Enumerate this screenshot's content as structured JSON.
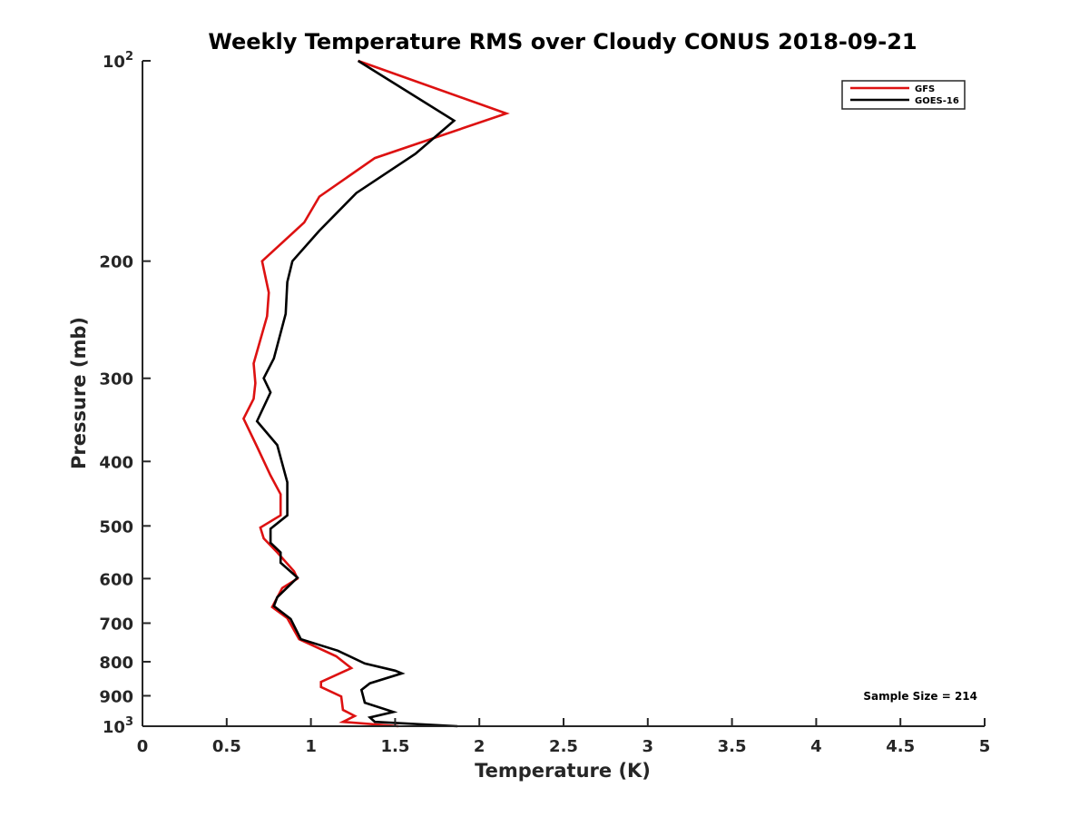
{
  "chart_data": {
    "type": "line",
    "title": "Weekly Temperature RMS over Cloudy CONUS 2018-09-21",
    "xlabel": "Temperature (K)",
    "ylabel": "Pressure (mb)",
    "xlim": [
      0,
      5
    ],
    "ylim": [
      100,
      1000
    ],
    "y_scale": "log",
    "y_reversed": true,
    "x_ticks": [
      0,
      0.5,
      1,
      1.5,
      2,
      2.5,
      3,
      3.5,
      4,
      4.5,
      5
    ],
    "x_tick_labels": [
      "0",
      "0.5",
      "1",
      "1.5",
      "2",
      "2.5",
      "3",
      "3.5",
      "4",
      "4.5",
      "5"
    ],
    "y_ticks": [
      {
        "value": 100,
        "base": "10",
        "exp": "2"
      },
      {
        "value": 200,
        "label": "200"
      },
      {
        "value": 300,
        "label": "300"
      },
      {
        "value": 400,
        "label": "400"
      },
      {
        "value": 500,
        "label": "500"
      },
      {
        "value": 600,
        "label": "600"
      },
      {
        "value": 700,
        "label": "700"
      },
      {
        "value": 800,
        "label": "800"
      },
      {
        "value": 900,
        "label": "900"
      },
      {
        "value": 1000,
        "base": "10",
        "exp": "3"
      }
    ],
    "legend_position": "top-right",
    "grid": false,
    "annotation": "Sample Size = 214",
    "series": [
      {
        "name": "GFS",
        "color": "#dd1111",
        "points": [
          [
            1.28,
            100
          ],
          [
            2.16,
            120
          ],
          [
            1.38,
            140
          ],
          [
            1.05,
            160
          ],
          [
            0.96,
            175
          ],
          [
            0.71,
            200
          ],
          [
            0.75,
            223
          ],
          [
            0.74,
            242
          ],
          [
            0.66,
            285
          ],
          [
            0.67,
            305
          ],
          [
            0.66,
            322
          ],
          [
            0.6,
            345
          ],
          [
            0.68,
            380
          ],
          [
            0.76,
            420
          ],
          [
            0.82,
            448
          ],
          [
            0.82,
            482
          ],
          [
            0.7,
            503
          ],
          [
            0.72,
            522
          ],
          [
            0.8,
            548
          ],
          [
            0.9,
            585
          ],
          [
            0.92,
            600
          ],
          [
            0.83,
            620
          ],
          [
            0.77,
            662
          ],
          [
            0.86,
            688
          ],
          [
            0.93,
            740
          ],
          [
            1.15,
            785
          ],
          [
            1.24,
            818
          ],
          [
            1.06,
            858
          ],
          [
            1.06,
            873
          ],
          [
            1.18,
            902
          ],
          [
            1.19,
            945
          ],
          [
            1.26,
            965
          ],
          [
            1.19,
            985
          ],
          [
            1.52,
            1000
          ]
        ]
      },
      {
        "name": "GOES-16",
        "color": "#000000",
        "points": [
          [
            1.28,
            100
          ],
          [
            1.85,
            123
          ],
          [
            1.62,
            138
          ],
          [
            1.27,
            158
          ],
          [
            1.05,
            180
          ],
          [
            0.89,
            200
          ],
          [
            0.86,
            215
          ],
          [
            0.85,
            240
          ],
          [
            0.78,
            280
          ],
          [
            0.72,
            300
          ],
          [
            0.76,
            315
          ],
          [
            0.68,
            348
          ],
          [
            0.8,
            378
          ],
          [
            0.86,
            430
          ],
          [
            0.86,
            482
          ],
          [
            0.76,
            505
          ],
          [
            0.76,
            530
          ],
          [
            0.82,
            548
          ],
          [
            0.82,
            568
          ],
          [
            0.92,
            598
          ],
          [
            0.8,
            640
          ],
          [
            0.78,
            660
          ],
          [
            0.88,
            690
          ],
          [
            0.94,
            740
          ],
          [
            1.16,
            770
          ],
          [
            1.32,
            805
          ],
          [
            1.5,
            825
          ],
          [
            1.54,
            833
          ],
          [
            1.35,
            862
          ],
          [
            1.3,
            882
          ],
          [
            1.32,
            922
          ],
          [
            1.49,
            952
          ],
          [
            1.35,
            970
          ],
          [
            1.38,
            985
          ],
          [
            1.87,
            1000
          ]
        ]
      }
    ]
  }
}
